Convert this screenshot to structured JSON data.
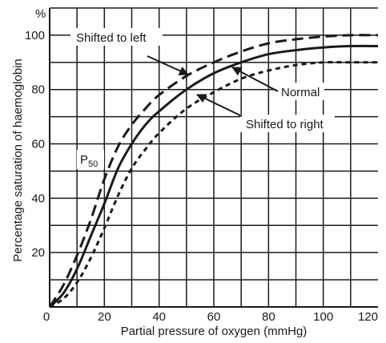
{
  "chart_data": {
    "type": "line",
    "xlabel": "Partial pressure of oxygen (mmHg)",
    "ylabel": "Percentage saturation of haemoglobin",
    "yunit": "%",
    "xlim": [
      0,
      120
    ],
    "ylim": [
      0,
      110
    ],
    "x_ticks": [
      "0",
      "20",
      "40",
      "60",
      "80",
      "100",
      "120"
    ],
    "y_ticks": [
      "0",
      "20",
      "40",
      "60",
      "80",
      "100"
    ],
    "grid": true,
    "legend": "none",
    "series": [
      {
        "name": "Shifted to left",
        "style": "long-dash",
        "x": [
          0,
          5,
          10,
          15,
          20,
          25,
          30,
          35,
          40,
          50,
          60,
          70,
          80,
          90,
          100,
          110,
          120
        ],
        "y": [
          0,
          8,
          19,
          32,
          47,
          59,
          67,
          73,
          78,
          85,
          90,
          94,
          97,
          98.5,
          99.5,
          100,
          100
        ]
      },
      {
        "name": "Normal",
        "style": "solid",
        "x": [
          0,
          5,
          10,
          15,
          20,
          25,
          30,
          35,
          40,
          50,
          60,
          70,
          80,
          90,
          100,
          110,
          120
        ],
        "y": [
          0,
          5,
          14,
          26,
          38,
          51,
          60,
          67,
          72,
          80,
          86,
          90,
          93,
          94.5,
          95.5,
          96,
          96
        ]
      },
      {
        "name": "Shifted to right",
        "style": "short-dash",
        "x": [
          0,
          5,
          10,
          15,
          20,
          25,
          30,
          35,
          40,
          50,
          60,
          70,
          80,
          90,
          100,
          110,
          120
        ],
        "y": [
          0,
          3,
          9,
          18,
          29,
          41,
          51,
          58,
          64,
          73,
          79,
          84,
          87,
          89,
          90,
          90,
          90
        ]
      }
    ],
    "annotations": [
      {
        "text": "Shifted to left",
        "points_to": "Shifted to left"
      },
      {
        "text": "Normal",
        "points_to": "Normal"
      },
      {
        "text": "Shifted to right",
        "points_to": "Shifted to right"
      },
      {
        "text": "P",
        "subscript": "50"
      }
    ]
  }
}
